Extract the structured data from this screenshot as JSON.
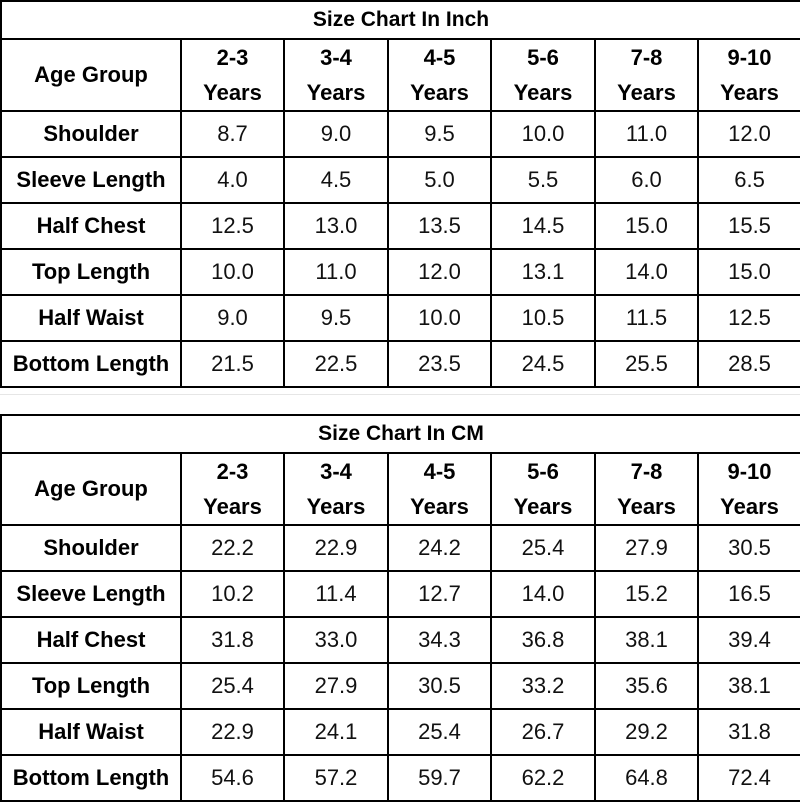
{
  "charts": [
    {
      "title": "Size Chart In Inch",
      "corner": "Age Group",
      "age_groups": [
        {
          "range": "2-3",
          "unit": "Years"
        },
        {
          "range": "3-4",
          "unit": "Years"
        },
        {
          "range": "4-5",
          "unit": "Years"
        },
        {
          "range": "5-6",
          "unit": "Years"
        },
        {
          "range": "7-8",
          "unit": "Years"
        },
        {
          "range": "9-10",
          "unit": "Years"
        }
      ],
      "rows": [
        {
          "label": "Shoulder",
          "values": [
            "8.7",
            "9.0",
            "9.5",
            "10.0",
            "11.0",
            "12.0"
          ]
        },
        {
          "label": "Sleeve Length",
          "values": [
            "4.0",
            "4.5",
            "5.0",
            "5.5",
            "6.0",
            "6.5"
          ]
        },
        {
          "label": "Half Chest",
          "values": [
            "12.5",
            "13.0",
            "13.5",
            "14.5",
            "15.0",
            "15.5"
          ]
        },
        {
          "label": "Top Length",
          "values": [
            "10.0",
            "11.0",
            "12.0",
            "13.1",
            "14.0",
            "15.0"
          ]
        },
        {
          "label": "Half Waist",
          "values": [
            "9.0",
            "9.5",
            "10.0",
            "10.5",
            "11.5",
            "12.5"
          ]
        },
        {
          "label": "Bottom Length",
          "values": [
            "21.5",
            "22.5",
            "23.5",
            "24.5",
            "25.5",
            "28.5"
          ]
        }
      ]
    },
    {
      "title": "Size Chart In CM",
      "corner": "Age Group",
      "age_groups": [
        {
          "range": "2-3",
          "unit": "Years"
        },
        {
          "range": "3-4",
          "unit": "Years"
        },
        {
          "range": "4-5",
          "unit": "Years"
        },
        {
          "range": "5-6",
          "unit": "Years"
        },
        {
          "range": "7-8",
          "unit": "Years"
        },
        {
          "range": "9-10",
          "unit": "Years"
        }
      ],
      "rows": [
        {
          "label": "Shoulder",
          "values": [
            "22.2",
            "22.9",
            "24.2",
            "25.4",
            "27.9",
            "30.5"
          ]
        },
        {
          "label": "Sleeve Length",
          "values": [
            "10.2",
            "11.4",
            "12.7",
            "14.0",
            "15.2",
            "16.5"
          ]
        },
        {
          "label": "Half Chest",
          "values": [
            "31.8",
            "33.0",
            "34.3",
            "36.8",
            "38.1",
            "39.4"
          ]
        },
        {
          "label": "Top Length",
          "values": [
            "25.4",
            "27.9",
            "30.5",
            "33.2",
            "35.6",
            "38.1"
          ]
        },
        {
          "label": "Half Waist",
          "values": [
            "22.9",
            "24.1",
            "25.4",
            "26.7",
            "29.2",
            "31.8"
          ]
        },
        {
          "label": "Bottom Length",
          "values": [
            "54.6",
            "57.2",
            "59.7",
            "62.2",
            "64.8",
            "72.4"
          ]
        }
      ]
    }
  ]
}
